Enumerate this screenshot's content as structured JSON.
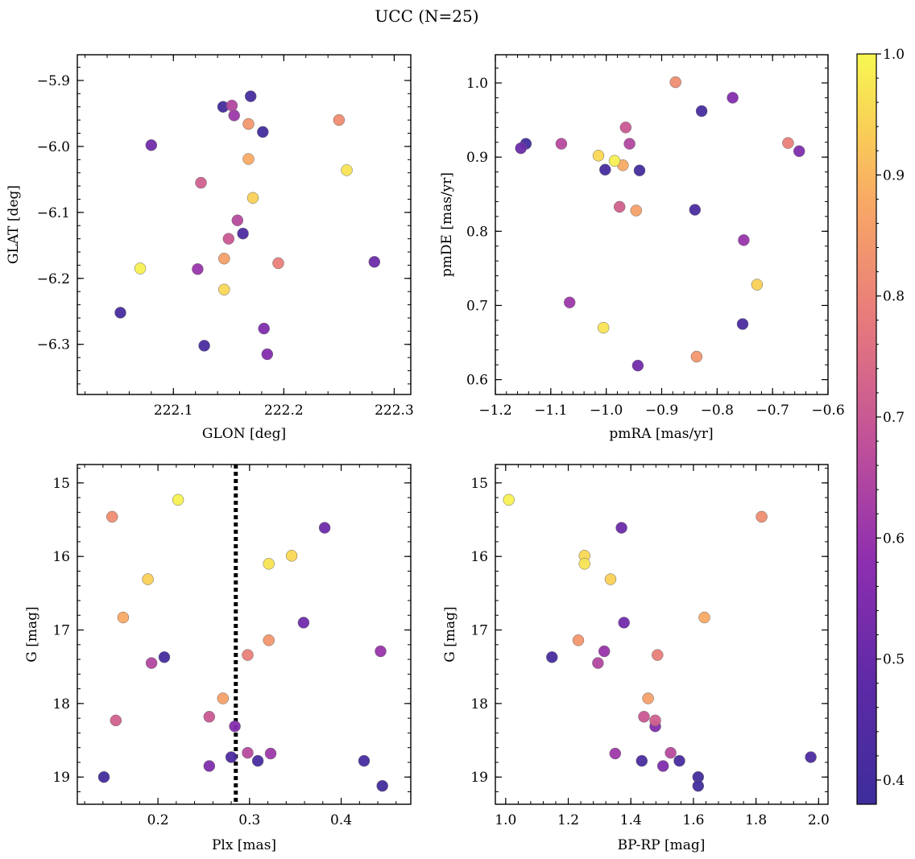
{
  "chart_data": {
    "title": "UCC (N=25)",
    "colorbar": {
      "range": [
        0.38,
        1.0
      ],
      "ticks": [
        "0.4",
        "0.5",
        "0.6",
        "0.7",
        "0.8",
        "0.9",
        "1.0"
      ],
      "colormap": "plasma"
    },
    "points": [
      {
        "glon": 222.145,
        "glat": -5.94,
        "pmra": -1.145,
        "pmde": 0.918,
        "plx": 0.141,
        "g": 19.0,
        "bprp": 1.615,
        "p": 0.4
      },
      {
        "glon": 222.17,
        "glat": -5.924,
        "pmra": -1.002,
        "pmde": 0.883,
        "plx": 0.425,
        "g": 18.78,
        "bprp": 1.555,
        "p": 0.41
      },
      {
        "glon": 222.181,
        "glat": -5.978,
        "pmra": -0.94,
        "pmde": 0.882,
        "plx": 0.445,
        "g": 19.12,
        "bprp": 1.615,
        "p": 0.4
      },
      {
        "glon": 222.052,
        "glat": -6.252,
        "pmra": -0.828,
        "pmde": 0.962,
        "plx": 0.207,
        "g": 17.37,
        "bprp": 1.148,
        "p": 0.41
      },
      {
        "glon": 222.128,
        "glat": -6.302,
        "pmra": -0.84,
        "pmde": 0.829,
        "plx": 0.309,
        "g": 18.78,
        "bprp": 1.435,
        "p": 0.42
      },
      {
        "glon": 222.163,
        "glat": -6.132,
        "pmra": -0.754,
        "pmde": 0.675,
        "plx": 0.28,
        "g": 18.73,
        "bprp": 1.975,
        "p": 0.43
      },
      {
        "glon": 222.282,
        "glat": -6.175,
        "pmra": -1.154,
        "pmde": 0.912,
        "plx": 0.382,
        "g": 15.61,
        "bprp": 1.37,
        "p": 0.51
      },
      {
        "glon": 222.08,
        "glat": -5.998,
        "pmra": -0.943,
        "pmde": 0.619,
        "plx": 0.359,
        "g": 16.9,
        "bprp": 1.378,
        "p": 0.52
      },
      {
        "glon": 222.182,
        "glat": -6.276,
        "pmra": -0.652,
        "pmde": 0.908,
        "plx": 0.256,
        "g": 18.85,
        "bprp": 1.503,
        "p": 0.55
      },
      {
        "glon": 222.185,
        "glat": -6.315,
        "pmra": -0.772,
        "pmde": 0.98,
        "plx": 0.284,
        "g": 18.31,
        "bprp": 1.478,
        "p": 0.56
      },
      {
        "glon": 222.122,
        "glat": -6.186,
        "pmra": -0.752,
        "pmde": 0.788,
        "plx": 0.443,
        "g": 17.29,
        "bprp": 1.315,
        "p": 0.6
      },
      {
        "glon": 222.155,
        "glat": -5.953,
        "pmra": -1.066,
        "pmde": 0.704,
        "plx": 0.323,
        "g": 18.68,
        "bprp": 1.35,
        "p": 0.61
      },
      {
        "glon": 222.153,
        "glat": -5.938,
        "pmra": -0.958,
        "pmde": 0.918,
        "plx": 0.193,
        "g": 17.45,
        "bprp": 1.295,
        "p": 0.65
      },
      {
        "glon": 222.158,
        "glat": -6.112,
        "pmra": -1.081,
        "pmde": 0.918,
        "plx": 0.298,
        "g": 18.67,
        "bprp": 1.527,
        "p": 0.66
      },
      {
        "glon": 222.15,
        "glat": -6.14,
        "pmra": -0.965,
        "pmde": 0.94,
        "plx": 0.256,
        "g": 18.18,
        "bprp": 1.442,
        "p": 0.7
      },
      {
        "glon": 222.125,
        "glat": -6.055,
        "pmra": -0.976,
        "pmde": 0.833,
        "plx": 0.154,
        "g": 18.23,
        "bprp": 1.478,
        "p": 0.72
      },
      {
        "glon": 222.195,
        "glat": -6.177,
        "pmra": -0.672,
        "pmde": 0.919,
        "plx": 0.298,
        "g": 17.34,
        "bprp": 1.485,
        "p": 0.79
      },
      {
        "glon": 222.25,
        "glat": -5.96,
        "pmra": -0.875,
        "pmde": 1.001,
        "plx": 0.15,
        "g": 15.46,
        "bprp": 1.818,
        "p": 0.82
      },
      {
        "glon": 222.168,
        "glat": -5.966,
        "pmra": -0.837,
        "pmde": 0.631,
        "plx": 0.321,
        "g": 17.14,
        "bprp": 1.232,
        "p": 0.84
      },
      {
        "glon": 222.146,
        "glat": -6.17,
        "pmra": -0.946,
        "pmde": 0.828,
        "plx": 0.271,
        "g": 17.93,
        "bprp": 1.455,
        "p": 0.86
      },
      {
        "glon": 222.168,
        "glat": -6.019,
        "pmra": -0.97,
        "pmde": 0.889,
        "plx": 0.162,
        "g": 16.83,
        "bprp": 1.635,
        "p": 0.88
      },
      {
        "glon": 222.172,
        "glat": -6.078,
        "pmra": -0.728,
        "pmde": 0.728,
        "plx": 0.189,
        "g": 16.31,
        "bprp": 1.335,
        "p": 0.94
      },
      {
        "glon": 222.146,
        "glat": -6.217,
        "pmra": -1.014,
        "pmde": 0.902,
        "plx": 0.346,
        "g": 15.99,
        "bprp": 1.252,
        "p": 0.95
      },
      {
        "glon": 222.257,
        "glat": -6.036,
        "pmra": -1.005,
        "pmde": 0.67,
        "plx": 0.321,
        "g": 16.1,
        "bprp": 1.252,
        "p": 0.97
      },
      {
        "glon": 222.07,
        "glat": -6.185,
        "pmra": -0.985,
        "pmde": 0.895,
        "plx": 0.222,
        "g": 15.23,
        "bprp": 1.01,
        "p": 0.99
      }
    ],
    "panels": [
      {
        "name": "sky",
        "type": "scatter",
        "x": "glon",
        "y": "glat",
        "xlabel": "GLON [deg]",
        "ylabel": "GLAT [deg]",
        "xlim": [
          222.013,
          222.315
        ],
        "ylim": [
          -6.376,
          -5.861
        ],
        "y_inverted": false,
        "xticks": [
          {
            "v": 222.1,
            "label": "222.1"
          },
          {
            "v": 222.2,
            "label": "222.2"
          },
          {
            "v": 222.3,
            "label": "222.3"
          }
        ],
        "yticks": [
          {
            "v": -5.9,
            "label": "−5.9"
          },
          {
            "v": -6.0,
            "label": "−6.0"
          },
          {
            "v": -6.1,
            "label": "−6.1"
          },
          {
            "v": -6.2,
            "label": "−6.2"
          },
          {
            "v": -6.3,
            "label": "−6.3"
          }
        ],
        "xminor": 0.02,
        "yminor": 0.02
      },
      {
        "name": "proper-motion",
        "type": "scatter",
        "x": "pmra",
        "y": "pmde",
        "xlabel": "pmRA [mas/yr]",
        "ylabel": "pmDE [mas/yr]",
        "xlim": [
          -1.2,
          -0.6
        ],
        "ylim": [
          0.58,
          1.038
        ],
        "y_inverted": false,
        "xticks": [
          {
            "v": -1.2,
            "label": "−1.2"
          },
          {
            "v": -1.1,
            "label": "−1.1"
          },
          {
            "v": -1.0,
            "label": "−1.0"
          },
          {
            "v": -0.9,
            "label": "−0.9"
          },
          {
            "v": -0.8,
            "label": "−0.8"
          },
          {
            "v": -0.7,
            "label": "−0.7"
          },
          {
            "v": -0.6,
            "label": "−0.6"
          }
        ],
        "yticks": [
          {
            "v": 0.6,
            "label": "0.6"
          },
          {
            "v": 0.7,
            "label": "0.7"
          },
          {
            "v": 0.8,
            "label": "0.8"
          },
          {
            "v": 0.9,
            "label": "0.9"
          },
          {
            "v": 1.0,
            "label": "1.0"
          }
        ],
        "xminor": 0.02,
        "yminor": 0.02
      },
      {
        "name": "parallax-magnitude",
        "type": "scatter",
        "x": "plx",
        "y": "g",
        "xlabel": "Plx [mas]",
        "ylabel": "G [mag]",
        "xlim": [
          0.112,
          0.476
        ],
        "ylim": [
          14.75,
          19.37
        ],
        "y_inverted": true,
        "xticks": [
          {
            "v": 0.2,
            "label": "0.2"
          },
          {
            "v": 0.3,
            "label": "0.3"
          },
          {
            "v": 0.4,
            "label": "0.4"
          }
        ],
        "yticks": [
          {
            "v": 15,
            "label": "15"
          },
          {
            "v": 16,
            "label": "16"
          },
          {
            "v": 17,
            "label": "17"
          },
          {
            "v": 18,
            "label": "18"
          },
          {
            "v": 19,
            "label": "19"
          }
        ],
        "xminor": 0.02,
        "yminor": 0.2,
        "vline": 0.285
      },
      {
        "name": "color-magnitude",
        "type": "scatter",
        "x": "bprp",
        "y": "g",
        "xlabel": "BP-RP [mag]",
        "ylabel": "G [mag]",
        "xlim": [
          0.967,
          2.03
        ],
        "ylim": [
          14.75,
          19.37
        ],
        "y_inverted": true,
        "xticks": [
          {
            "v": 1.0,
            "label": "1.0"
          },
          {
            "v": 1.2,
            "label": "1.2"
          },
          {
            "v": 1.4,
            "label": "1.4"
          },
          {
            "v": 1.6,
            "label": "1.6"
          },
          {
            "v": 1.8,
            "label": "1.8"
          },
          {
            "v": 2.0,
            "label": "2.0"
          }
        ],
        "yticks": [
          {
            "v": 15,
            "label": "15"
          },
          {
            "v": 16,
            "label": "16"
          },
          {
            "v": 17,
            "label": "17"
          },
          {
            "v": 18,
            "label": "18"
          },
          {
            "v": 19,
            "label": "19"
          }
        ],
        "xminor": 0.04,
        "yminor": 0.2
      }
    ]
  }
}
